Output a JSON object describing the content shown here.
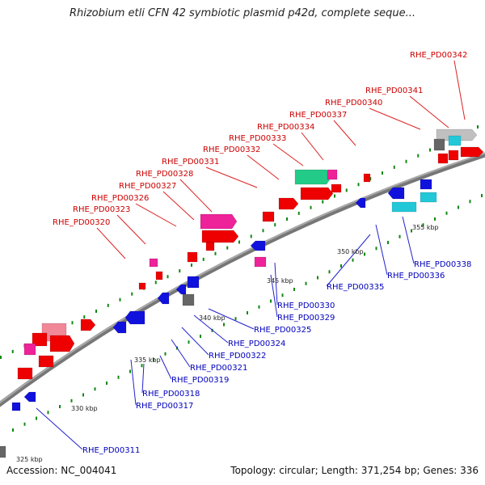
{
  "title": "Rhizobium etli CFN 42 symbiotic plasmid p42d, complete seque...",
  "footer": {
    "accession": "Accession: NC_004041",
    "summary": "Topology: circular; Length: 371,254 bp; Genes: 336"
  },
  "scale_labels": [
    "325 kbp",
    "330 kbp",
    "335 kbp",
    "340 kbp",
    "345 kbp",
    "350 kbp",
    "355 kbp"
  ],
  "forward_labels": [
    "RHE_PD00320",
    "RHE_PD00323",
    "RHE_PD00326",
    "RHE_PD00327",
    "RHE_PD00328",
    "RHE_PD00331",
    "RHE_PD00332",
    "RHE_PD00333",
    "RHE_PD00334",
    "RHE_PD00337",
    "RHE_PD00340",
    "RHE_PD00341",
    "RHE_PD00342"
  ],
  "reverse_labels": [
    "RHE_PD00311",
    "RHE_PD00317",
    "RHE_PD00318",
    "RHE_PD00319",
    "RHE_PD00321",
    "RHE_PD00322",
    "RHE_PD00324",
    "RHE_PD00325",
    "RHE_PD00329",
    "RHE_PD00330",
    "RHE_PD00335",
    "RHE_PD00336",
    "RHE_PD00338"
  ],
  "colors": {
    "forward_gene": "#ee0000",
    "reverse_gene": "#1111dd",
    "pink_gene": "#ee2299",
    "light_pink_gene": "#f08898",
    "green_gene": "#22cc88",
    "cyan_gene": "#22c8d8",
    "gray_gene": "#666666",
    "light_gray_gene": "#c0c0c0",
    "backbone": "#888888",
    "tick": "#118811"
  }
}
